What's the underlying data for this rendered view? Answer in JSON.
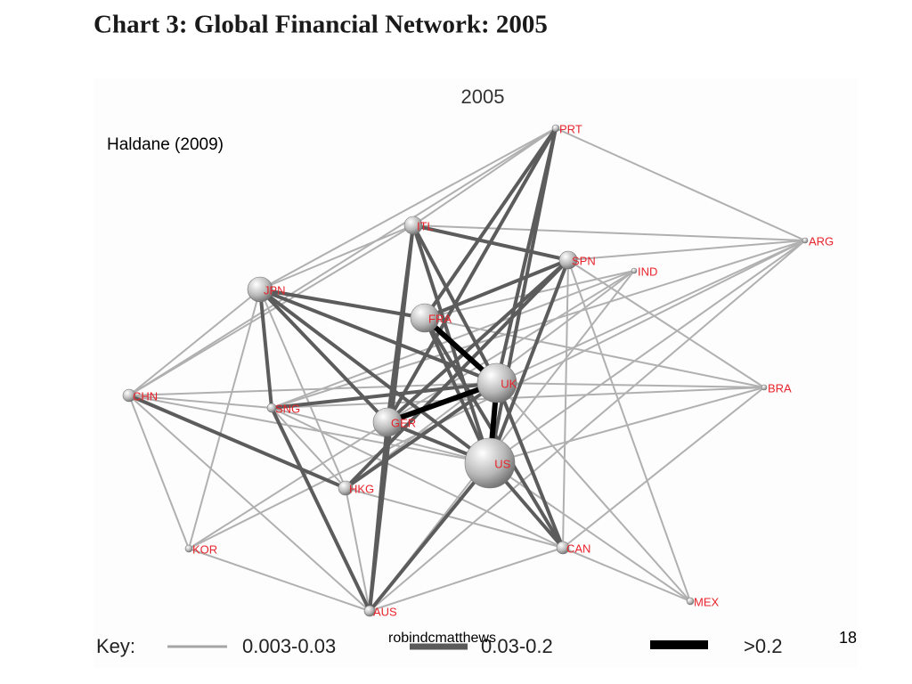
{
  "header": {
    "title": "Chart 3: Global Financial Network: 2005"
  },
  "chart": {
    "subtitle": "2005",
    "source": "Haldane (2009)",
    "nodes": [
      {
        "label": "PRT"
      },
      {
        "label": "ITL"
      },
      {
        "label": "SPN"
      },
      {
        "label": "ARG"
      },
      {
        "label": "IND"
      },
      {
        "label": "JPN"
      },
      {
        "label": "FRA"
      },
      {
        "label": "UK"
      },
      {
        "label": "BRA"
      },
      {
        "label": "CHN"
      },
      {
        "label": "SNG"
      },
      {
        "label": "GER"
      },
      {
        "label": "US"
      },
      {
        "label": "HKG"
      },
      {
        "label": "KOR"
      },
      {
        "label": "CAN"
      },
      {
        "label": "AUS"
      },
      {
        "label": "MEX"
      }
    ]
  },
  "key": {
    "label": "Key:",
    "items": [
      {
        "label": "0.003-0.03"
      },
      {
        "label": "0.03-0.2"
      },
      {
        "label": ">0.2"
      }
    ]
  },
  "footer": {
    "author": "robindcmatthews",
    "page": "18"
  }
}
